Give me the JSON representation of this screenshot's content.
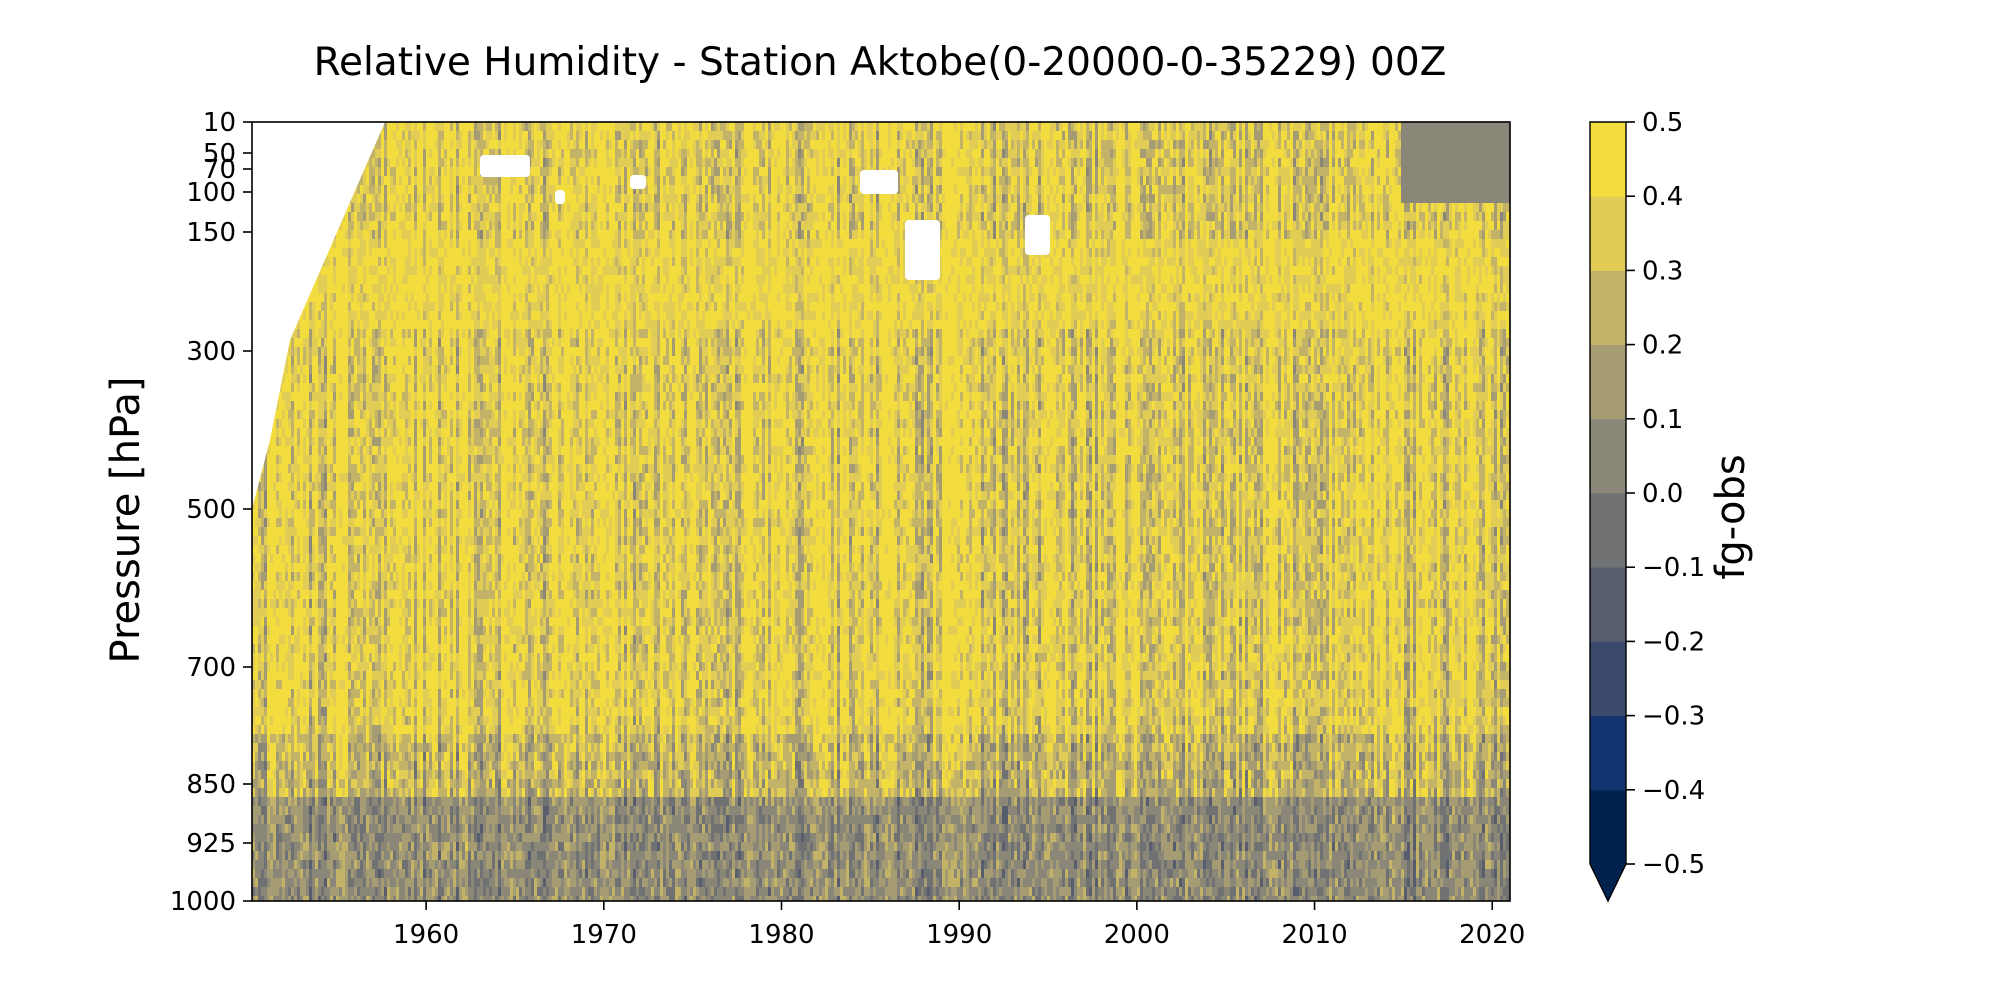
{
  "chart_data": {
    "type": "heatmap",
    "title": "Relative Humidity - Station Aktobe(0-20000-0-35229) 00Z",
    "xlabel": "",
    "ylabel": "Pressure [hPa]",
    "colorbar_label": "fg-obs",
    "x_ticks": [
      "1960",
      "1970",
      "1980",
      "1990",
      "2000",
      "2010",
      "2020"
    ],
    "xlim": [
      1950.2,
      2021
    ],
    "y_ticks": [
      "10",
      "50",
      "70",
      "100",
      "150",
      "300",
      "500",
      "700",
      "850",
      "925",
      "1000"
    ],
    "ylim": [
      1000,
      10
    ],
    "colorbar_ticks": [
      "0.5",
      "0.4",
      "0.3",
      "0.2",
      "0.1",
      "0.0",
      "−0.1",
      "−0.2",
      "−0.3",
      "−0.4",
      "−0.5"
    ],
    "colorbar_range": [
      -0.5,
      0.5
    ],
    "colorbar_extend": "min",
    "colormap": [
      "#00224e",
      "#123570",
      "#3b496c",
      "#575d6d",
      "#707173",
      "#8a8678",
      "#a59c74",
      "#c3b369",
      "#e1cc55",
      "#f3dd3e"
    ],
    "under_color": "#00224e",
    "missing_color": "#ffffff",
    "description_levels": {
      "dominant_value": "0.4 to 0.5",
      "surface_layer_value": "-0.1 to 0.1"
    }
  }
}
